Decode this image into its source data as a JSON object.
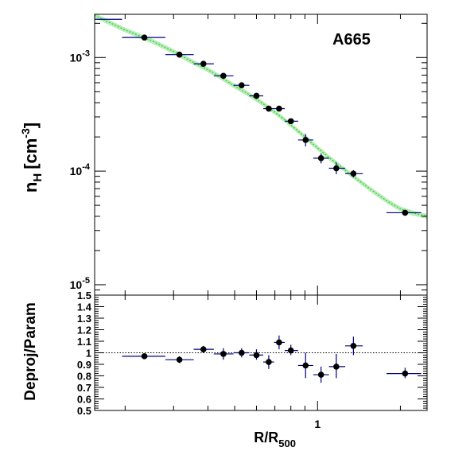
{
  "chart_data": [
    {
      "type": "scatter",
      "panel": "top",
      "annotation": "A665",
      "xlabel": "R/R500",
      "xlabel_main": "R/R",
      "xlabel_sub": "500",
      "ylabel_main": "n",
      "ylabel_sub": "H",
      "ylabel_unit": "[cm",
      "ylabel_unit_sup": "-3",
      "ylabel_unit_end": "]",
      "x_scale": "log",
      "y_scale": "log",
      "xlim": [
        0.155,
        2.5
      ],
      "ylim": [
        8.1e-06,
        0.0024
      ],
      "grid": false,
      "y_tick_labels": [
        {
          "value": 0.001,
          "base": "10",
          "exp": "-3"
        },
        {
          "value": 0.0001,
          "base": "10",
          "exp": "-4"
        },
        {
          "value": 1e-05,
          "base": "10",
          "exp": "-5"
        }
      ],
      "series": [
        {
          "marker": "circle",
          "color": "#000000",
          "x_err_color": "#000080",
          "points": [
            {
              "x": 0.235,
              "y": 0.0015,
              "xlo": 0.195,
              "xhi": 0.28,
              "ylo": 0.00146,
              "yhi": 0.00154
            },
            {
              "x": 0.315,
              "y": 0.00106,
              "xlo": 0.28,
              "xhi": 0.355,
              "ylo": 0.00104,
              "yhi": 0.00108
            },
            {
              "x": 0.385,
              "y": 0.00088,
              "xlo": 0.355,
              "xhi": 0.42,
              "ylo": 0.00086,
              "yhi": 0.0009
            },
            {
              "x": 0.455,
              "y": 0.00069,
              "xlo": 0.42,
              "xhi": 0.495,
              "ylo": 0.00067,
              "yhi": 0.00071
            },
            {
              "x": 0.53,
              "y": 0.00057,
              "xlo": 0.495,
              "xhi": 0.565,
              "ylo": 0.00055,
              "yhi": 0.00059
            },
            {
              "x": 0.6,
              "y": 0.00046,
              "xlo": 0.565,
              "xhi": 0.635,
              "ylo": 0.00044,
              "yhi": 0.00048
            },
            {
              "x": 0.665,
              "y": 0.000355,
              "xlo": 0.635,
              "xhi": 0.695,
              "ylo": 0.000335,
              "yhi": 0.000375
            },
            {
              "x": 0.725,
              "y": 0.000355,
              "xlo": 0.695,
              "xhi": 0.76,
              "ylo": 0.00034,
              "yhi": 0.00037
            },
            {
              "x": 0.8,
              "y": 0.000275,
              "xlo": 0.76,
              "xhi": 0.85,
              "ylo": 0.000262,
              "yhi": 0.000288
            },
            {
              "x": 0.905,
              "y": 0.000188,
              "xlo": 0.85,
              "xhi": 0.965,
              "ylo": 0.000165,
              "yhi": 0.000212
            },
            {
              "x": 1.03,
              "y": 0.00013,
              "xlo": 0.965,
              "xhi": 1.1,
              "ylo": 0.000117,
              "yhi": 0.000143
            },
            {
              "x": 1.17,
              "y": 0.000106,
              "xlo": 1.1,
              "xhi": 1.26,
              "ylo": 9.4e-05,
              "yhi": 0.000119
            },
            {
              "x": 1.35,
              "y": 9.5e-05,
              "xlo": 1.26,
              "xhi": 1.46,
              "ylo": 8.8e-05,
              "yhi": 0.000102
            },
            {
              "x": 2.08,
              "y": 4.3e-05,
              "xlo": 1.78,
              "xhi": 2.38,
              "ylo": 4.05e-05,
              "yhi": 4.55e-05
            }
          ]
        },
        {
          "marker": "none",
          "color": "#000080",
          "points": [
            {
              "x": 0.172,
              "y": 0.00217,
              "xlo": 0.155,
              "xhi": 0.195,
              "ylo": 0.00217,
              "yhi": 0.00217
            }
          ]
        }
      ],
      "model_curve": {
        "color": "#33cc33",
        "x": [
          0.155,
          0.2,
          0.25,
          0.3,
          0.35,
          0.4,
          0.45,
          0.5,
          0.55,
          0.6,
          0.65,
          0.7,
          0.75,
          0.8,
          0.85,
          0.9,
          0.95,
          1.0,
          1.1,
          1.2,
          1.3,
          1.4,
          1.5,
          1.6,
          1.7,
          1.8,
          1.9,
          2.0,
          2.2,
          2.5
        ],
        "y": [
          0.00235,
          0.00175,
          0.0014,
          0.00113,
          0.00092,
          0.00078,
          0.00066,
          0.00056,
          0.00049,
          0.00043,
          0.000375,
          0.00033,
          0.00029,
          0.000255,
          0.000225,
          0.0002,
          0.000178,
          0.00016,
          0.000132,
          0.000112,
          9.6e-05,
          8.4e-05,
          7.4e-05,
          6.6e-05,
          5.95e-05,
          5.4e-05,
          5e-05,
          4.65e-05,
          4.3e-05,
          4e-05
        ],
        "band_frac": 0.05
      }
    },
    {
      "type": "scatter",
      "panel": "bottom",
      "ylabel": "Deproj/Param",
      "x_scale": "log",
      "xlim": [
        0.155,
        2.5
      ],
      "ylim": [
        0.5,
        1.5
      ],
      "x_tick_label": "1",
      "y_tick_labels": [
        "0.5",
        "0.6",
        "0.7",
        "0.8",
        "0.9",
        "1",
        "1.1",
        "1.2",
        "1.3",
        "1.4",
        "1.5"
      ],
      "reference_line": 1.0,
      "grid": false,
      "series": [
        {
          "marker": "circle",
          "color": "#000000",
          "x_err_color": "#000080",
          "points": [
            {
              "x": 0.235,
              "y": 0.97,
              "xlo": 0.195,
              "xhi": 0.28,
              "ylo": 0.95,
              "yhi": 0.99
            },
            {
              "x": 0.315,
              "y": 0.94,
              "xlo": 0.28,
              "xhi": 0.355,
              "ylo": 0.91,
              "yhi": 0.97
            },
            {
              "x": 0.385,
              "y": 1.03,
              "xlo": 0.355,
              "xhi": 0.42,
              "ylo": 1.0,
              "yhi": 1.06
            },
            {
              "x": 0.455,
              "y": 0.99,
              "xlo": 0.42,
              "xhi": 0.495,
              "ylo": 0.94,
              "yhi": 1.04
            },
            {
              "x": 0.53,
              "y": 1.0,
              "xlo": 0.495,
              "xhi": 0.565,
              "ylo": 0.96,
              "yhi": 1.04
            },
            {
              "x": 0.6,
              "y": 0.98,
              "xlo": 0.565,
              "xhi": 0.635,
              "ylo": 0.94,
              "yhi": 1.03
            },
            {
              "x": 0.665,
              "y": 0.92,
              "xlo": 0.635,
              "xhi": 0.695,
              "ylo": 0.86,
              "yhi": 0.98
            },
            {
              "x": 0.725,
              "y": 1.09,
              "xlo": 0.695,
              "xhi": 0.76,
              "ylo": 1.03,
              "yhi": 1.15
            },
            {
              "x": 0.8,
              "y": 1.02,
              "xlo": 0.76,
              "xhi": 0.85,
              "ylo": 0.98,
              "yhi": 1.07
            },
            {
              "x": 0.905,
              "y": 0.89,
              "xlo": 0.85,
              "xhi": 0.965,
              "ylo": 0.78,
              "yhi": 1.0
            },
            {
              "x": 1.03,
              "y": 0.81,
              "xlo": 0.965,
              "xhi": 1.1,
              "ylo": 0.74,
              "yhi": 0.88
            },
            {
              "x": 1.17,
              "y": 0.88,
              "xlo": 1.1,
              "xhi": 1.26,
              "ylo": 0.78,
              "yhi": 0.99
            },
            {
              "x": 1.35,
              "y": 1.06,
              "xlo": 1.26,
              "xhi": 1.46,
              "ylo": 0.98,
              "yhi": 1.14
            },
            {
              "x": 2.08,
              "y": 0.82,
              "xlo": 1.78,
              "xhi": 2.38,
              "ylo": 0.78,
              "yhi": 0.87
            }
          ]
        }
      ]
    }
  ]
}
